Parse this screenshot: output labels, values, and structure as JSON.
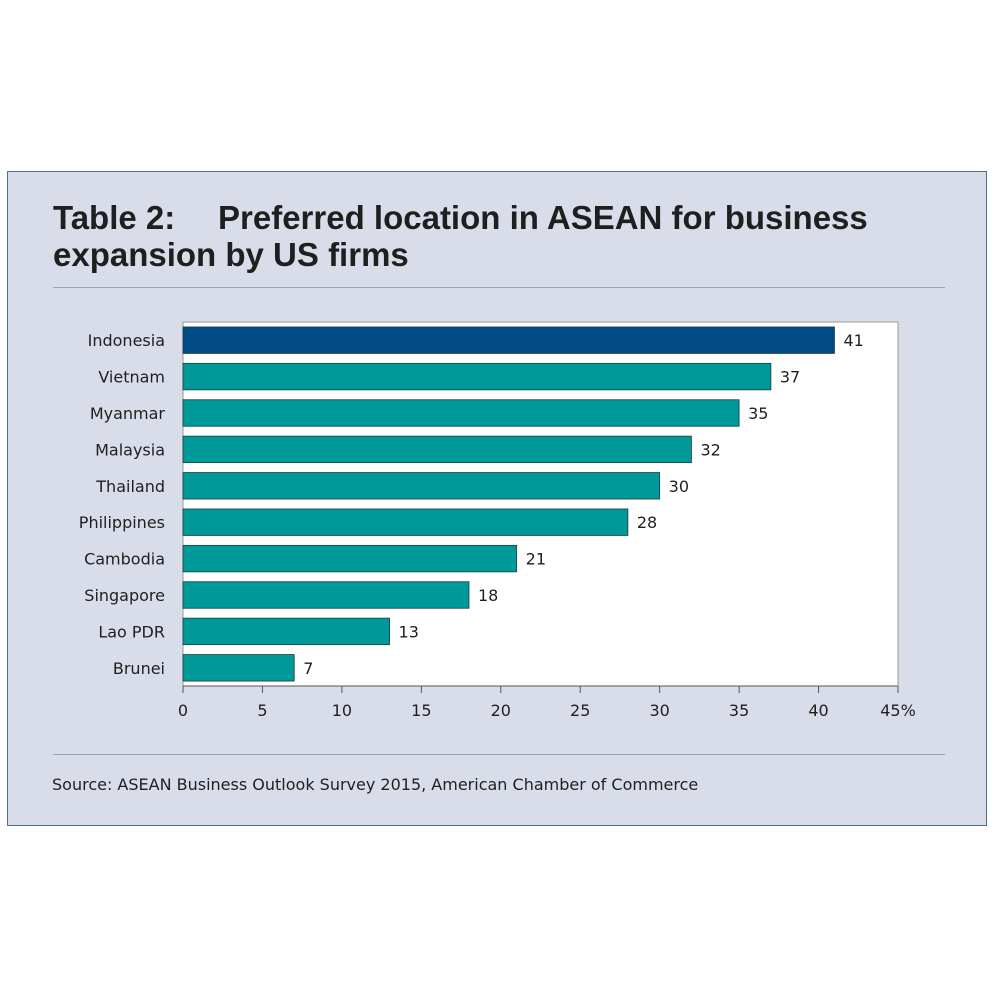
{
  "title": {
    "number": "Table 2:",
    "text": "Preferred location in ASEAN for business expansion by US firms"
  },
  "source": "Source: ASEAN Business Outlook Survey 2015, American Chamber of Commerce",
  "colors": {
    "panel_background": "#d9dde9",
    "highlight_bar": "#004a85",
    "bar": "#009999"
  },
  "chart_data": {
    "type": "bar",
    "orientation": "horizontal",
    "categories": [
      "Indonesia",
      "Vietnam",
      "Myanmar",
      "Malaysia",
      "Thailand",
      "Philippines",
      "Cambodia",
      "Singapore",
      "Lao PDR",
      "Brunei"
    ],
    "values": [
      41,
      37,
      35,
      32,
      30,
      28,
      21,
      18,
      13,
      7
    ],
    "value_labels": [
      "41",
      "37",
      "35",
      "32",
      "30",
      "28",
      "21",
      "18",
      "13",
      "7"
    ],
    "highlight_category": "Indonesia",
    "xlim": [
      0,
      45
    ],
    "x_ticks": [
      0,
      5,
      10,
      15,
      20,
      25,
      30,
      35,
      40,
      45
    ],
    "x_tick_labels": [
      "0",
      "5",
      "10",
      "15",
      "20",
      "25",
      "30",
      "35",
      "40",
      "45%"
    ],
    "grid": false,
    "xlabel": "",
    "ylabel": ""
  }
}
